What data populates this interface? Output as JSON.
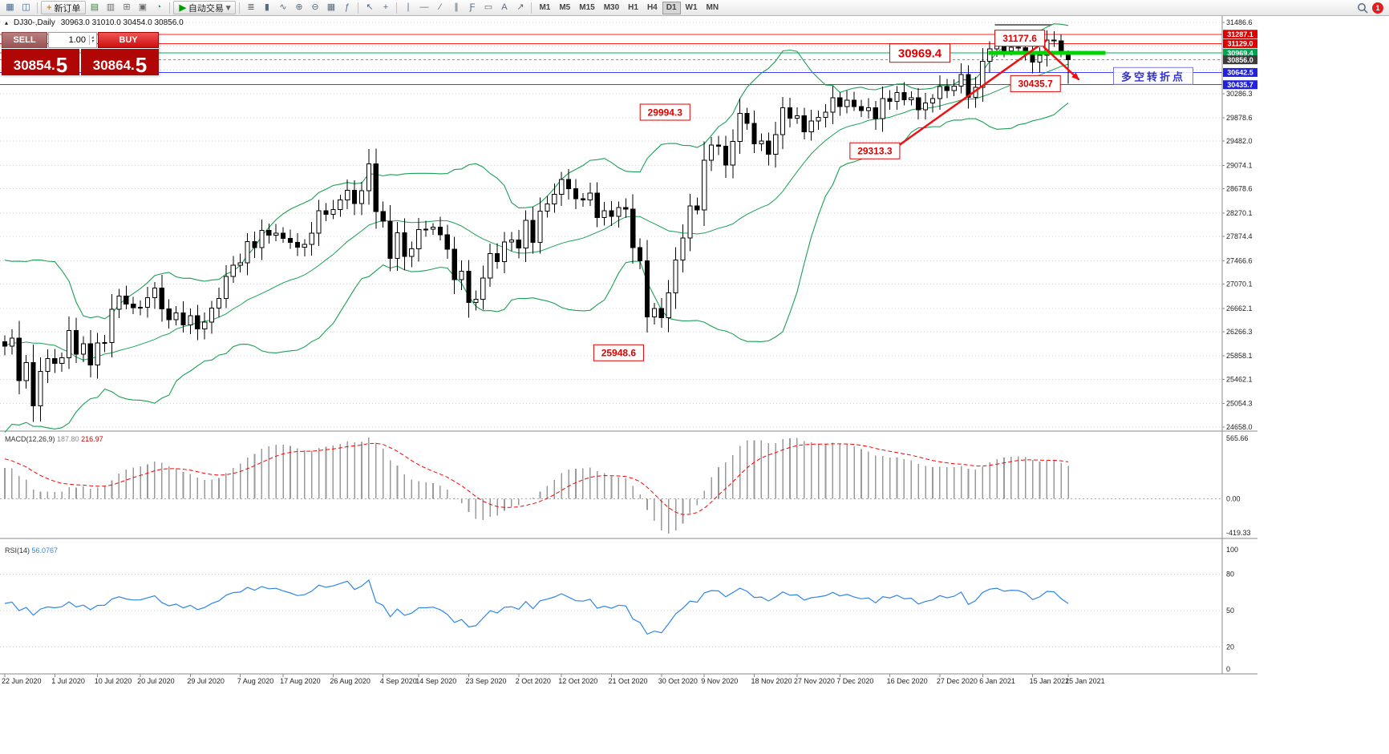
{
  "toolbar": {
    "left_icons": [
      {
        "name": "new-chart-icon",
        "glyph": "▦",
        "color": "#44688e"
      },
      {
        "name": "chart-profiles-icon",
        "glyph": "◫",
        "color": "#44688e"
      }
    ],
    "new_order": {
      "label": "新订单",
      "icon_glyph": "+",
      "icon_color": "#d89000"
    },
    "mid_icons": [
      {
        "name": "market-watch-icon",
        "glyph": "▤",
        "color": "#3f7f3f"
      },
      {
        "name": "data-window-icon",
        "glyph": "▥",
        "color": "#6a6a6a"
      },
      {
        "name": "navigator-icon",
        "glyph": "⊞",
        "color": "#6a6a6a"
      },
      {
        "name": "terminal-icon",
        "glyph": "▣",
        "color": "#6a6a6a"
      },
      {
        "name": "strategy-tester-icon",
        "glyph": "◔",
        "color": "#2e8b57"
      }
    ],
    "auto_trading": {
      "label": "自动交易",
      "icon_glyph": "▶",
      "icon_color": "#00a000",
      "dropdown_glyph": "▾"
    },
    "chart_icons": [
      {
        "name": "bar-chart-icon",
        "glyph": "≣"
      },
      {
        "name": "candlestick-icon",
        "glyph": "▮"
      },
      {
        "name": "line-chart-icon",
        "glyph": "∿"
      },
      {
        "name": "zoom-in-icon",
        "glyph": "⊕"
      },
      {
        "name": "zoom-out-icon",
        "glyph": "⊖"
      },
      {
        "name": "grid-icon",
        "glyph": "▦"
      },
      {
        "name": "indicators-icon",
        "glyph": "ƒ"
      }
    ],
    "cursor_icons": [
      {
        "name": "cursor-icon",
        "glyph": "↖"
      },
      {
        "name": "crosshair-icon",
        "glyph": "+"
      }
    ],
    "draw_icons": [
      {
        "name": "vertical-line-icon",
        "glyph": "∣"
      },
      {
        "name": "horizontal-line-icon",
        "glyph": "―"
      },
      {
        "name": "trendline-icon",
        "glyph": "∕"
      },
      {
        "name": "channel-icon",
        "glyph": "∥"
      },
      {
        "name": "fibonacci-icon",
        "glyph": "Ƒ"
      },
      {
        "name": "shapes-icon",
        "glyph": "▭"
      },
      {
        "name": "text-icon",
        "glyph": "A"
      },
      {
        "name": "arrows-icon",
        "glyph": "↗"
      }
    ],
    "timeframes": [
      "M1",
      "M5",
      "M15",
      "M30",
      "H1",
      "H4",
      "D1",
      "W1",
      "MN"
    ],
    "active_timeframe": "D1",
    "notification_count": "1"
  },
  "chart_header": {
    "expand_icon": "▴",
    "symbol_label": "DJ30-,Daily",
    "ohlc": "30963.0 31010.0 30454.0 30856.0"
  },
  "trade_panel": {
    "sell_label": "SELL",
    "buy_label": "BUY",
    "volume": "1.00",
    "spin_up": "▴",
    "spin_down": "▾",
    "bid_main": "30854.",
    "bid_pip": "5",
    "ask_main": "30864.",
    "ask_pip": "5"
  },
  "chart_data": {
    "type": "candlestick",
    "symbol": "DJ30-",
    "timeframe": "Daily",
    "price_range": {
      "top": 31486.6,
      "bottom": 24658.0
    },
    "y_axis_labels": [
      "31486.6",
      "30286.3",
      "29878.6",
      "29482.0",
      "29074.1",
      "28678.6",
      "28270.1",
      "27874.4",
      "27466.6",
      "27070.1",
      "26662.1",
      "26266.3",
      "25858.1",
      "25462.1",
      "25054.3",
      "24658.0"
    ],
    "hidden_grid": [
      31090.3,
      30682.6
    ],
    "x_labels": [
      {
        "text": "22 Jun 2020",
        "bar": 0
      },
      {
        "text": "1 Jul 2020",
        "bar": 7
      },
      {
        "text": "10 Jul 2020",
        "bar": 13
      },
      {
        "text": "20 Jul 2020",
        "bar": 19
      },
      {
        "text": "29 Jul 2020",
        "bar": 26
      },
      {
        "text": "7 Aug 2020",
        "bar": 33
      },
      {
        "text": "17 Aug 2020",
        "bar": 39
      },
      {
        "text": "26 Aug 2020",
        "bar": 46
      },
      {
        "text": "4 Sep 2020",
        "bar": 53
      },
      {
        "text": "14 Sep 2020",
        "bar": 58
      },
      {
        "text": "23 Sep 2020",
        "bar": 65
      },
      {
        "text": "2 Oct 2020",
        "bar": 72
      },
      {
        "text": "12 Oct 2020",
        "bar": 78
      },
      {
        "text": "21 Oct 2020",
        "bar": 85
      },
      {
        "text": "30 Oct 2020",
        "bar": 92
      },
      {
        "text": "9 Nov 2020",
        "bar": 98
      },
      {
        "text": "18 Nov 2020",
        "bar": 105
      },
      {
        "text": "27 Nov 2020",
        "bar": 111
      },
      {
        "text": "7 Dec 2020",
        "bar": 117
      },
      {
        "text": "16 Dec 2020",
        "bar": 124
      },
      {
        "text": "27 Dec 2020",
        "bar": 131
      },
      {
        "text": "6 Jan 2021",
        "bar": 137
      },
      {
        "text": "15 Jan 2021",
        "bar": 144
      },
      {
        "text": "25 Jan 2021",
        "bar": 149
      }
    ],
    "pre_closes": [
      24597,
      24206,
      24575,
      24465,
      24331,
      24995,
      25548,
      25400,
      25383,
      25595,
      26270,
      26025,
      27110,
      27272,
      27572,
      27070,
      25128,
      25590,
      25080,
      26290,
      26090,
      26120,
      26022,
      25871
    ],
    "first_open": 26100,
    "closes": [
      26025,
      26156,
      25445,
      25746,
      25016,
      25596,
      25813,
      25735,
      25827,
      26287,
      25890,
      26067,
      25706,
      26075,
      26086,
      26643,
      26870,
      26735,
      26672,
      26681,
      26840,
      27006,
      26652,
      26470,
      26585,
      26379,
      26539,
      26313,
      26428,
      26664,
      26828,
      27202,
      27387,
      27433,
      27791,
      27686,
      27977,
      27897,
      27931,
      27845,
      27778,
      27693,
      27740,
      27930,
      28308,
      28248,
      28332,
      28492,
      28654,
      28430,
      28646,
      29101,
      28293,
      28133,
      27501,
      27940,
      27535,
      27666,
      27994,
      27996,
      28032,
      27902,
      27657,
      27148,
      27288,
      26763,
      26815,
      27174,
      27584,
      27452,
      27782,
      27817,
      27683,
      28149,
      27773,
      28303,
      28426,
      28587,
      28838,
      28680,
      28514,
      28494,
      28606,
      28195,
      28309,
      28211,
      28364,
      28336,
      27685,
      27463,
      26520,
      26660,
      26502,
      26925,
      27480,
      27848,
      28390,
      28323,
      29158,
      29421,
      29398,
      29080,
      29480,
      29950,
      29783,
      29438,
      29483,
      29263,
      29591,
      30046,
      29872,
      29910,
      29639,
      29824,
      29884,
      29970,
      30218,
      30069,
      30174,
      30069,
      29999,
      30046,
      29861,
      30199,
      30154,
      30303,
      30179,
      30216,
      30015,
      30130,
      30200,
      30404,
      30336,
      30409,
      30606,
      30224,
      30392,
      30830,
      31041,
      31098,
      31008,
      31069,
      31060,
      30992,
      30814,
      30930,
      31188,
      31176,
      30997,
      30856
    ],
    "last_candle": {
      "open": 30963.0,
      "high": 31010.0,
      "low": 30454.0,
      "close": 30856.0
    },
    "indicators": {
      "bollinger": {
        "period": 20,
        "deviation": 2,
        "color": "#1aa055"
      },
      "macd": {
        "fast": 12,
        "slow": 26,
        "signal": 9,
        "hist_color": "#9a9a9a",
        "signal_color": "#ff0000"
      },
      "rsi": {
        "period": 14,
        "color": "#2f86e8"
      }
    },
    "candle_colors": {
      "up_fill": "#ffffff",
      "down_fill": "#000000",
      "outline": "#000000"
    },
    "price_tags": [
      {
        "value": "31287.1",
        "color": "#e00000"
      },
      {
        "value": "31129.0",
        "color": "#e00000"
      },
      {
        "value": "30969.4",
        "color": "#00a550"
      },
      {
        "value": "30856.0",
        "color": "#3c3c3c"
      },
      {
        "value": "30642.5",
        "color": "#2222dd"
      },
      {
        "value": "30435.7",
        "color": "#2222dd"
      }
    ],
    "hlines": [
      {
        "price": 31287.1,
        "color": "#ff2020",
        "w": 1
      },
      {
        "price": 31129.0,
        "color": "#ff2020",
        "w": 1
      },
      {
        "price": 30969.4,
        "color": "#00b050",
        "w": 1
      },
      {
        "price": 30642.5,
        "color": "#4040ff",
        "w": 1
      },
      {
        "price": 30435.7,
        "color": "#4040ff",
        "w": 1
      }
    ],
    "current_price_line": {
      "price": 30856.0,
      "color": "#909090"
    },
    "segments": [
      {
        "price": 30969.4,
        "bar1": 137.8,
        "bar2": 154.2,
        "color": "#00d400",
        "w": 5
      },
      {
        "price": 31446,
        "bar1": 138.7,
        "bar2": 146.7,
        "color": "#707070",
        "w": 2
      }
    ],
    "arrows": [
      {
        "bar1": 125,
        "p1": 29390,
        "bar2": 146,
        "p2": 31190,
        "color": "#ee1111",
        "w": 2.5
      },
      {
        "bar1": 145.5,
        "p1": 31080,
        "bar2": 150.5,
        "p2": 30520,
        "color": "#ee1111",
        "w": 2.5
      }
    ],
    "callouts": [
      {
        "text": "31177.6",
        "bar": 142.2,
        "price": 31221,
        "size": 12
      },
      {
        "text": "30969.4",
        "bar": 128.2,
        "price": 30970,
        "size": 15
      },
      {
        "text": "30435.7",
        "bar": 144.4,
        "price": 30454,
        "size": 12
      },
      {
        "text": "29994.3",
        "bar": 92.5,
        "price": 29972,
        "size": 12
      },
      {
        "text": "29313.3",
        "bar": 121.9,
        "price": 29320,
        "size": 12
      },
      {
        "text": "25948.6",
        "bar": 86,
        "price": 25912,
        "size": 12
      }
    ],
    "cn_note": {
      "text": "多空转折点",
      "bar": 160.9,
      "price": 30577,
      "color": "#3232cc",
      "border": "#7878e0"
    }
  },
  "macd_panel": {
    "label": "MACD(12,26,9)",
    "value1": "187.80",
    "value2": "216.97",
    "axis": [
      "565.66",
      "0.00",
      "-419.33"
    ]
  },
  "rsi_panel": {
    "label": "RSI(14)",
    "value": "56.0767",
    "axis": [
      "100",
      "80",
      "50",
      "20",
      "0"
    ],
    "levels": [
      80,
      50,
      20
    ]
  }
}
